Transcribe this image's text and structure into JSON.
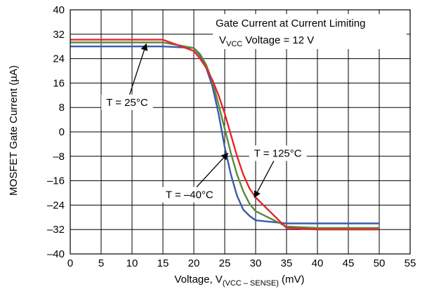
{
  "chart_data": {
    "type": "line",
    "title_lines": [
      "Gate Current at Current Limiting",
      "Voltage = 12 V"
    ],
    "title_prefix": "V",
    "title_prefix_sub": "VCC",
    "xlabel_main": "Voltage, V",
    "xlabel_sub": "(VCC – SENSE)",
    "xlabel_unit": " (mV)",
    "ylabel": "MOSFET Gate Current (µA)",
    "xlim": [
      0,
      55
    ],
    "ylim": [
      -40,
      40
    ],
    "xticks": [
      0,
      5,
      10,
      15,
      20,
      25,
      30,
      35,
      40,
      45,
      50,
      55
    ],
    "yticks": [
      -40,
      -32,
      -24,
      -16,
      -8,
      0,
      8,
      16,
      24,
      32,
      40
    ],
    "grid": true,
    "series": [
      {
        "name": "T = –40°C",
        "color": "#3a5bab",
        "x": [
          0,
          15,
          20,
          21,
          22,
          23,
          24,
          25,
          26,
          27,
          28,
          29,
          30,
          35,
          40,
          45,
          50
        ],
        "y": [
          28,
          28,
          27.5,
          25,
          21,
          15,
          6,
          -5,
          -14,
          -21,
          -25.5,
          -27.5,
          -29,
          -30,
          -30,
          -30,
          -30
        ]
      },
      {
        "name": "T = 25°C",
        "color": "#5a8a3c",
        "x": [
          0,
          15,
          20,
          21,
          22,
          23,
          24,
          25,
          26,
          27,
          28,
          29,
          30,
          35,
          40,
          45,
          50
        ],
        "y": [
          29.3,
          29.3,
          27.5,
          25.5,
          22,
          16.5,
          9,
          1,
          -7,
          -14,
          -19.5,
          -23.5,
          -26,
          -31,
          -31.5,
          -31.5,
          -31.5
        ]
      },
      {
        "name": "T = 125°C",
        "color": "#e8242a",
        "x": [
          0,
          15,
          20,
          21,
          22,
          23,
          24,
          25,
          26,
          27,
          28,
          29,
          30,
          35,
          40,
          45,
          50
        ],
        "y": [
          30.2,
          30.2,
          26.5,
          24,
          21,
          17,
          12,
          6,
          -1,
          -8,
          -14,
          -18.5,
          -21.5,
          -31.5,
          -32,
          -32,
          -32
        ]
      }
    ],
    "annotations": [
      {
        "text": "T = 25°C",
        "target": [
          12.3,
          28.8
        ],
        "label_at": [
          9.2,
          9.7
        ]
      },
      {
        "text": "T = –40°C",
        "target": [
          25.5,
          -7
        ],
        "label_at": [
          19.3,
          -20.6
        ]
      },
      {
        "text": "T = 125°C",
        "target": [
          29.8,
          -21.5
        ],
        "label_at": [
          33.6,
          -7
        ]
      }
    ]
  }
}
